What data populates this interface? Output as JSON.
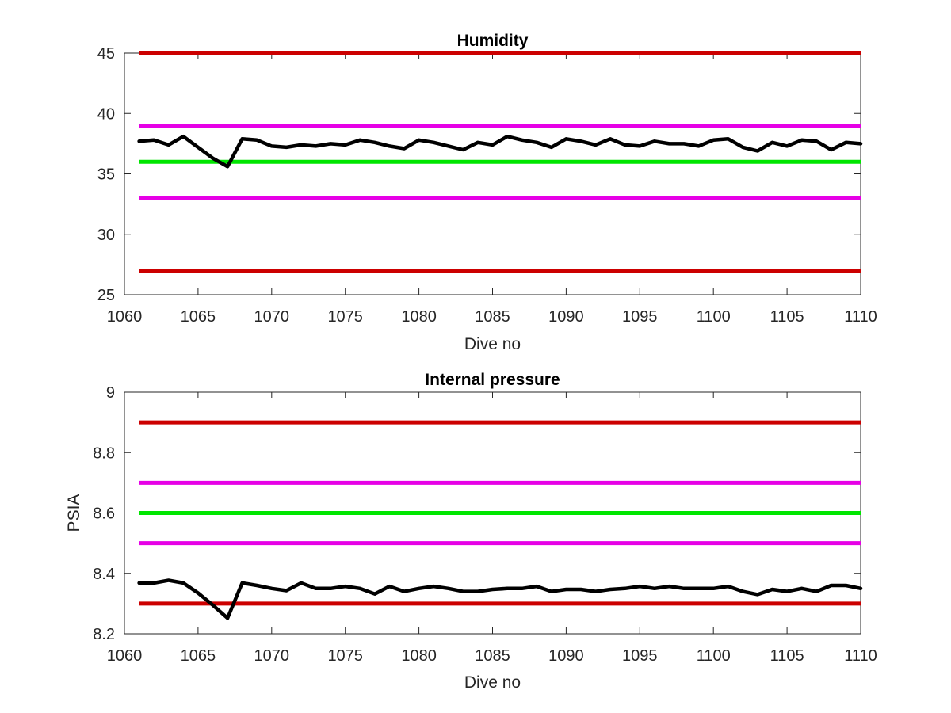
{
  "chart_data": [
    {
      "type": "line",
      "title": "Humidity",
      "xlabel": "Dive no",
      "ylabel": "",
      "xlim": [
        1060,
        1110
      ],
      "ylim": [
        25,
        45
      ],
      "xticks": [
        1060,
        1065,
        1070,
        1075,
        1080,
        1085,
        1090,
        1095,
        1100,
        1105,
        1110
      ],
      "yticks": [
        25,
        30,
        35,
        40,
        45
      ],
      "grid": false,
      "reference_lines": [
        {
          "y": 45,
          "color": "#cc0000"
        },
        {
          "y": 39,
          "color": "#e600e6"
        },
        {
          "y": 36,
          "color": "#00e600"
        },
        {
          "y": 33,
          "color": "#e600e6"
        },
        {
          "y": 27,
          "color": "#cc0000"
        }
      ],
      "series": [
        {
          "color": "#000000",
          "x": [
            1061,
            1062,
            1063,
            1064,
            1065,
            1066,
            1067,
            1068,
            1069,
            1070,
            1071,
            1072,
            1073,
            1074,
            1075,
            1076,
            1077,
            1078,
            1079,
            1080,
            1081,
            1082,
            1083,
            1084,
            1085,
            1086,
            1087,
            1088,
            1089,
            1090,
            1091,
            1092,
            1093,
            1094,
            1095,
            1096,
            1097,
            1098,
            1099,
            1100,
            1101,
            1102,
            1103,
            1104,
            1105,
            1106,
            1107,
            1108,
            1109,
            1110
          ],
          "y": [
            37.7,
            37.8,
            37.4,
            38.1,
            37.2,
            36.3,
            35.6,
            37.9,
            37.8,
            37.3,
            37.2,
            37.4,
            37.3,
            37.5,
            37.4,
            37.8,
            37.6,
            37.3,
            37.1,
            37.8,
            37.6,
            37.3,
            37.0,
            37.6,
            37.4,
            38.1,
            37.8,
            37.6,
            37.2,
            37.9,
            37.7,
            37.4,
            37.9,
            37.4,
            37.3,
            37.7,
            37.5,
            37.5,
            37.3,
            37.8,
            37.9,
            37.2,
            36.9,
            37.6,
            37.3,
            37.8,
            37.7,
            37.0,
            37.6,
            37.5
          ]
        }
      ]
    },
    {
      "type": "line",
      "title": "Internal pressure",
      "xlabel": "Dive no",
      "ylabel": "PSIA",
      "xlim": [
        1060,
        1110
      ],
      "ylim": [
        8.2,
        9
      ],
      "xticks": [
        1060,
        1065,
        1070,
        1075,
        1080,
        1085,
        1090,
        1095,
        1100,
        1105,
        1110
      ],
      "yticks": [
        8.2,
        8.4,
        8.6,
        8.8,
        9
      ],
      "grid": false,
      "reference_lines": [
        {
          "y": 8.9,
          "color": "#cc0000"
        },
        {
          "y": 8.7,
          "color": "#e600e6"
        },
        {
          "y": 8.6,
          "color": "#00e600"
        },
        {
          "y": 8.5,
          "color": "#e600e6"
        },
        {
          "y": 8.3,
          "color": "#cc0000"
        }
      ],
      "series": [
        {
          "color": "#000000",
          "x": [
            1061,
            1062,
            1063,
            1064,
            1065,
            1066,
            1067,
            1068,
            1069,
            1070,
            1071,
            1072,
            1073,
            1074,
            1075,
            1076,
            1077,
            1078,
            1079,
            1080,
            1081,
            1082,
            1083,
            1084,
            1085,
            1086,
            1087,
            1088,
            1089,
            1090,
            1091,
            1092,
            1093,
            1094,
            1095,
            1096,
            1097,
            1098,
            1099,
            1100,
            1101,
            1102,
            1103,
            1104,
            1105,
            1106,
            1107,
            1108,
            1109,
            1110
          ],
          "y": [
            8.368,
            8.368,
            8.377,
            8.368,
            8.335,
            8.295,
            8.252,
            8.368,
            8.36,
            8.35,
            8.343,
            8.368,
            8.35,
            8.35,
            8.357,
            8.35,
            8.332,
            8.357,
            8.34,
            8.35,
            8.357,
            8.35,
            8.34,
            8.34,
            8.347,
            8.35,
            8.35,
            8.357,
            8.34,
            8.347,
            8.347,
            8.34,
            8.347,
            8.35,
            8.357,
            8.35,
            8.357,
            8.35,
            8.35,
            8.35,
            8.357,
            8.34,
            8.33,
            8.347,
            8.34,
            8.35,
            8.34,
            8.36,
            8.36,
            8.35
          ]
        }
      ]
    }
  ]
}
